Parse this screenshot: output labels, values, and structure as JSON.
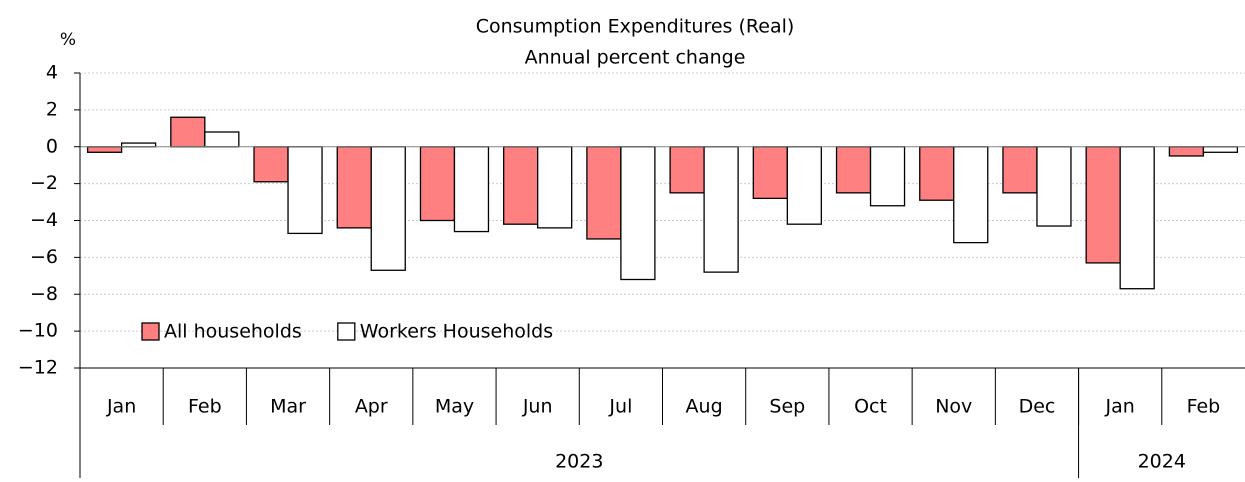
{
  "chart_data": {
    "type": "bar",
    "title": "Consumption Expenditures (Real)",
    "subtitle": "Annual percent change",
    "y_unit": "%",
    "categories": [
      "Jan",
      "Feb",
      "Mar",
      "Apr",
      "May",
      "Jun",
      "Jul",
      "Aug",
      "Sep",
      "Oct",
      "Nov",
      "Dec",
      "Jan",
      "Feb"
    ],
    "groups": [
      {
        "label": "2023",
        "count": 12
      },
      {
        "label": "2024",
        "count": 2
      }
    ],
    "series": [
      {
        "name": "All households",
        "color": "#ff8080",
        "values": [
          -0.3,
          1.6,
          -1.9,
          -4.4,
          -4.0,
          -4.2,
          -5.0,
          -2.5,
          -2.8,
          -2.5,
          -2.9,
          -2.5,
          -6.3,
          -0.5
        ]
      },
      {
        "name": "Workers Households",
        "color": "#ffffff",
        "values": [
          0.2,
          0.8,
          -4.7,
          -6.7,
          -4.6,
          -4.4,
          -7.2,
          -6.8,
          -4.2,
          -3.2,
          -5.2,
          -4.3,
          -7.7,
          -0.3
        ]
      }
    ],
    "ylim": [
      -12,
      4
    ],
    "yticks": [
      {
        "value": -12,
        "label": "−12"
      },
      {
        "value": -10,
        "label": "−10"
      },
      {
        "value": -8,
        "label": "−8"
      },
      {
        "value": -6,
        "label": "−6"
      },
      {
        "value": -4,
        "label": "−4"
      },
      {
        "value": -2,
        "label": "−2"
      },
      0,
      2,
      4
    ],
    "grid": true,
    "legend": "lower left"
  }
}
